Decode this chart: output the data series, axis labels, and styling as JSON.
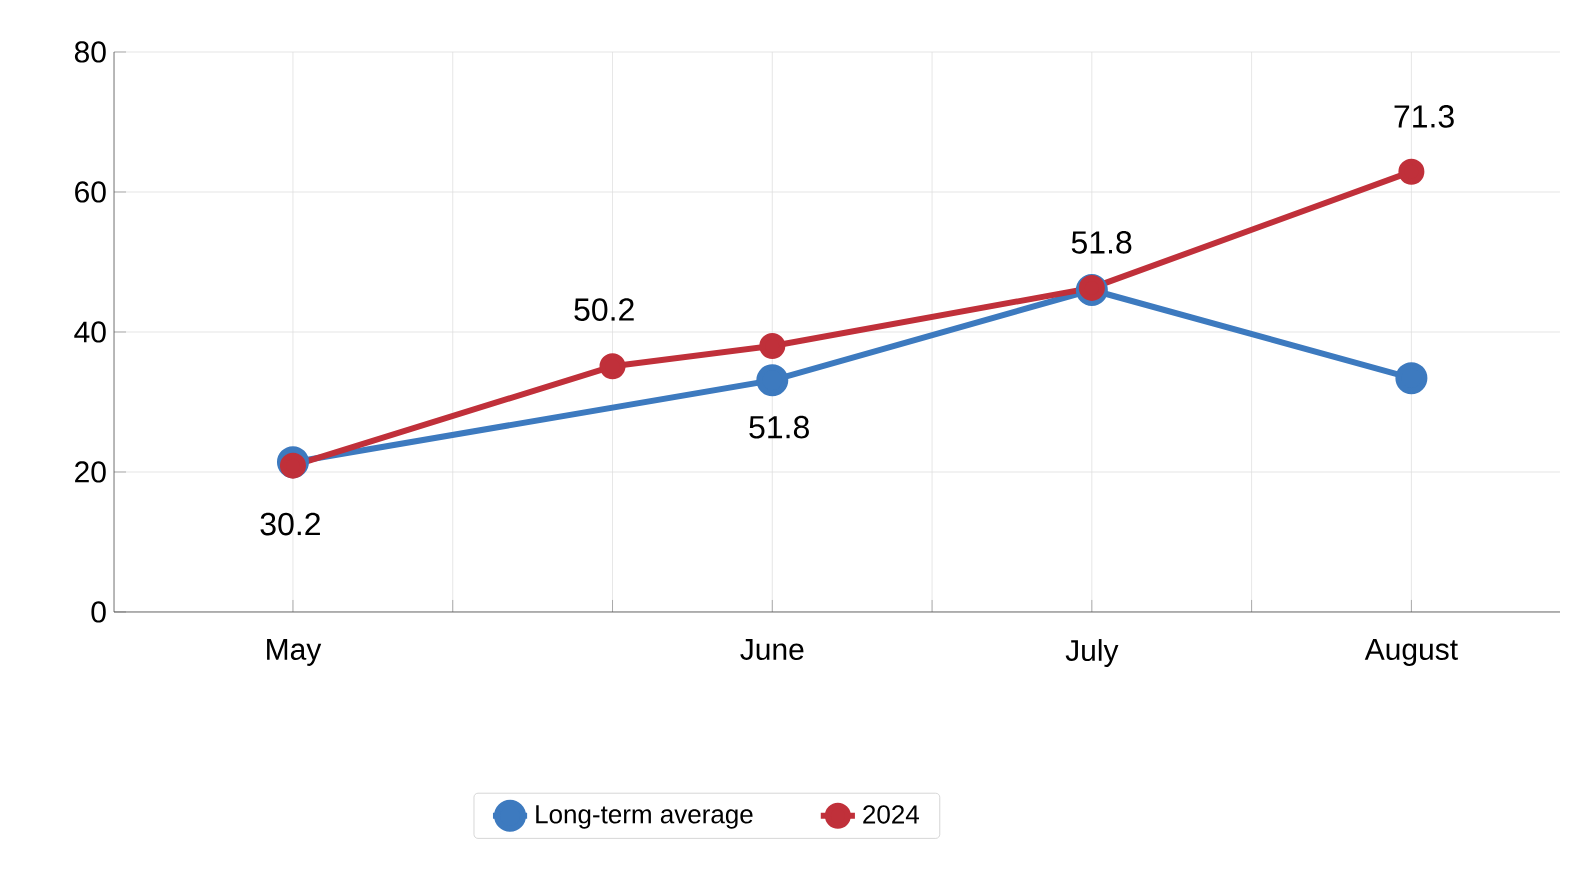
{
  "chart_data": {
    "type": "line",
    "categories": [
      "May",
      null,
      null,
      "June",
      null,
      "July",
      null,
      "August"
    ],
    "ylim": [
      0,
      80
    ],
    "yticks": [
      0,
      20,
      40,
      60,
      80
    ],
    "series": [
      {
        "name": "Long-term average",
        "color": "#3d7abf",
        "values": [
          21.4,
          null,
          null,
          33.1,
          null,
          46.0,
          null,
          33.4
        ]
      },
      {
        "name": "2024",
        "color": "#c0303a",
        "values": [
          20.9,
          null,
          35.1,
          38.0,
          null,
          46.3,
          null,
          62.9
        ]
      }
    ],
    "annotations": [
      "30.2",
      "50.2",
      "51.8",
      "51.8",
      "71.3"
    ],
    "grid": true,
    "legend": "bottom",
    "marker": "circle",
    "line_style": "solid"
  }
}
